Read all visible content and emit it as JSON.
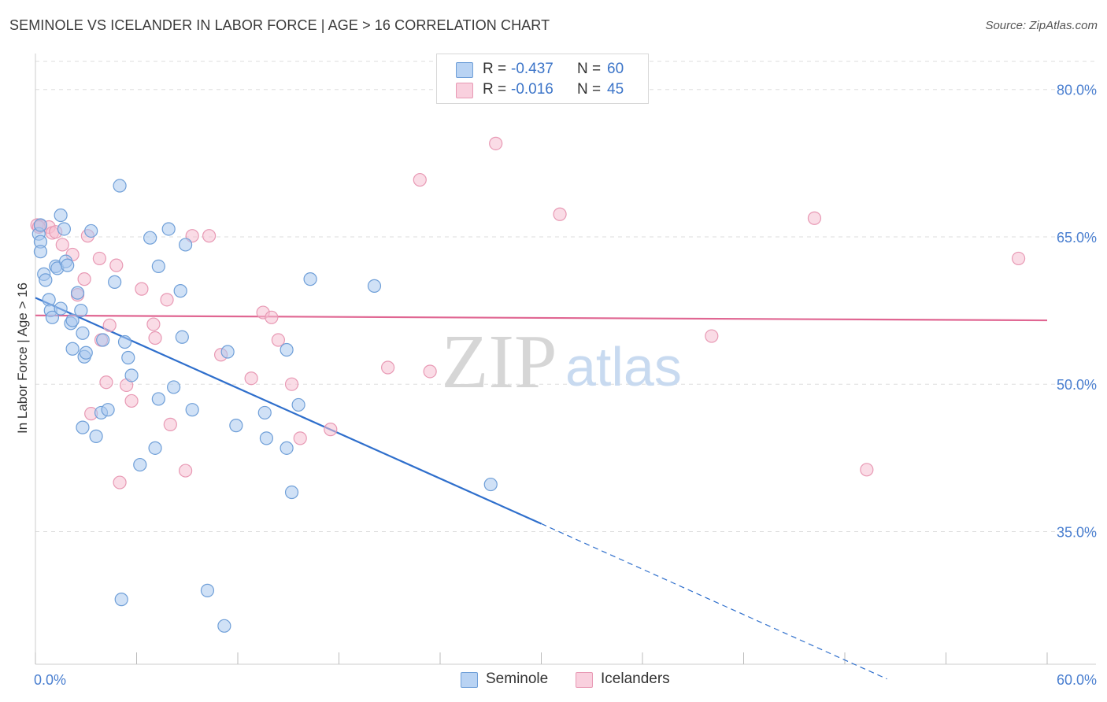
{
  "title": "SEMINOLE VS ICELANDER IN LABOR FORCE | AGE > 16 CORRELATION CHART",
  "source": "Source: ZipAtlas.com",
  "legend_top": {
    "rows": [
      {
        "r_label": "R =",
        "r_value": "-0.437",
        "n_label": "N =",
        "n_value": "60"
      },
      {
        "r_label": "R =",
        "r_value": "-0.016",
        "n_label": "N =",
        "n_value": "45"
      }
    ]
  },
  "legend_bottom": {
    "series1": "Seminole",
    "series2": "Icelanders"
  },
  "colors": {
    "seminole_fill": "#a9c8ef",
    "seminole_stroke": "#6f9fd8",
    "seminole_line": "#2f6fcc",
    "icelander_fill": "#f6bfd2",
    "icelander_stroke": "#e899b4",
    "icelander_line": "#e06692",
    "grid": "#dddddd",
    "tick_label": "#4a7fd0",
    "watermark_zip": "#d6d6d6",
    "watermark_atlas": "#c8daf0"
  },
  "watermark": {
    "zip": "ZIP",
    "atlas": "atlas"
  },
  "chart_data": {
    "type": "scatter",
    "title": "SEMINOLE VS ICELANDER IN LABOR FORCE | AGE > 16 CORRELATION CHART",
    "xlabel": "",
    "ylabel": "In Labor Force | Age > 16",
    "xlim": [
      0,
      60
    ],
    "ylim": [
      21.5,
      83.5
    ],
    "x_tick_labels": [
      {
        "value": 0,
        "label": "0.0%"
      },
      {
        "value": 60,
        "label": "60.0%"
      }
    ],
    "y_tick_labels": [
      {
        "value": 80,
        "label": "80.0%"
      },
      {
        "value": 65,
        "label": "65.0%"
      },
      {
        "value": 50,
        "label": "50.0%"
      },
      {
        "value": 35,
        "label": "35.0%"
      }
    ],
    "grid": true,
    "series": [
      {
        "name": "Seminole",
        "points": [
          [
            0.2,
            65.3
          ],
          [
            0.3,
            64.5
          ],
          [
            0.3,
            63.5
          ],
          [
            0.5,
            61.2
          ],
          [
            0.6,
            60.6
          ],
          [
            0.8,
            58.6
          ],
          [
            0.9,
            57.5
          ],
          [
            1.0,
            56.8
          ],
          [
            1.2,
            62.0
          ],
          [
            1.3,
            61.8
          ],
          [
            1.5,
            67.2
          ],
          [
            1.5,
            57.7
          ],
          [
            1.7,
            65.8
          ],
          [
            1.8,
            62.5
          ],
          [
            1.9,
            62.1
          ],
          [
            2.1,
            56.2
          ],
          [
            2.2,
            53.6
          ],
          [
            2.2,
            56.5
          ],
          [
            2.5,
            59.3
          ],
          [
            2.7,
            57.5
          ],
          [
            2.8,
            55.2
          ],
          [
            2.8,
            45.6
          ],
          [
            2.9,
            52.8
          ],
          [
            3.0,
            53.2
          ],
          [
            3.3,
            65.6
          ],
          [
            3.6,
            44.7
          ],
          [
            3.9,
            47.1
          ],
          [
            4.0,
            54.5
          ],
          [
            4.3,
            47.4
          ],
          [
            4.7,
            60.4
          ],
          [
            5.0,
            70.2
          ],
          [
            5.1,
            28.1
          ],
          [
            5.3,
            54.3
          ],
          [
            5.5,
            52.7
          ],
          [
            5.7,
            50.9
          ],
          [
            6.2,
            41.8
          ],
          [
            6.8,
            64.9
          ],
          [
            7.1,
            43.5
          ],
          [
            7.3,
            62.0
          ],
          [
            7.3,
            48.5
          ],
          [
            7.9,
            65.8
          ],
          [
            8.2,
            49.7
          ],
          [
            8.6,
            59.5
          ],
          [
            8.7,
            54.8
          ],
          [
            8.9,
            64.2
          ],
          [
            9.3,
            47.4
          ],
          [
            10.2,
            29.0
          ],
          [
            11.2,
            25.4
          ],
          [
            11.4,
            53.3
          ],
          [
            11.9,
            45.8
          ],
          [
            13.6,
            47.1
          ],
          [
            13.7,
            44.5
          ],
          [
            14.9,
            43.5
          ],
          [
            14.9,
            53.5
          ],
          [
            15.2,
            39.0
          ],
          [
            15.6,
            47.9
          ],
          [
            16.3,
            60.7
          ],
          [
            20.1,
            60.0
          ],
          [
            27.0,
            39.8
          ],
          [
            0.3,
            66.2
          ]
        ]
      },
      {
        "name": "Icelanders",
        "points": [
          [
            0.1,
            66.2
          ],
          [
            0.3,
            66.1
          ],
          [
            0.8,
            66.0
          ],
          [
            1.0,
            65.4
          ],
          [
            1.2,
            65.5
          ],
          [
            1.6,
            64.2
          ],
          [
            2.2,
            63.2
          ],
          [
            2.5,
            59.1
          ],
          [
            2.9,
            60.7
          ],
          [
            3.1,
            65.1
          ],
          [
            3.3,
            47.0
          ],
          [
            3.8,
            62.8
          ],
          [
            3.9,
            54.5
          ],
          [
            4.2,
            50.2
          ],
          [
            4.4,
            56.0
          ],
          [
            4.8,
            62.1
          ],
          [
            5.0,
            40.0
          ],
          [
            5.4,
            49.9
          ],
          [
            5.7,
            48.3
          ],
          [
            6.3,
            59.7
          ],
          [
            7.0,
            56.1
          ],
          [
            7.1,
            54.7
          ],
          [
            7.8,
            58.6
          ],
          [
            8.0,
            45.9
          ],
          [
            8.9,
            41.2
          ],
          [
            9.3,
            65.1
          ],
          [
            10.3,
            65.1
          ],
          [
            11.0,
            53.0
          ],
          [
            12.8,
            50.6
          ],
          [
            13.5,
            57.3
          ],
          [
            14.0,
            56.8
          ],
          [
            14.4,
            54.5
          ],
          [
            15.2,
            50.0
          ],
          [
            15.7,
            44.5
          ],
          [
            17.5,
            45.4
          ],
          [
            20.9,
            51.7
          ],
          [
            22.8,
            70.8
          ],
          [
            23.4,
            51.3
          ],
          [
            27.3,
            74.5
          ],
          [
            31.1,
            67.3
          ],
          [
            40.1,
            54.9
          ],
          [
            46.2,
            66.9
          ],
          [
            49.3,
            41.3
          ],
          [
            58.3,
            62.8
          ],
          [
            0.2,
            66.0
          ]
        ]
      }
    ],
    "trend_lines": [
      {
        "name": "Seminole",
        "solid": [
          [
            0.0,
            58.8
          ],
          [
            30.0,
            35.8
          ]
        ],
        "dashed": [
          [
            30.0,
            35.8
          ],
          [
            50.5,
            20.0
          ]
        ]
      },
      {
        "name": "Icelanders",
        "solid": [
          [
            0.0,
            57.0
          ],
          [
            60.0,
            56.5
          ]
        ]
      }
    ]
  }
}
